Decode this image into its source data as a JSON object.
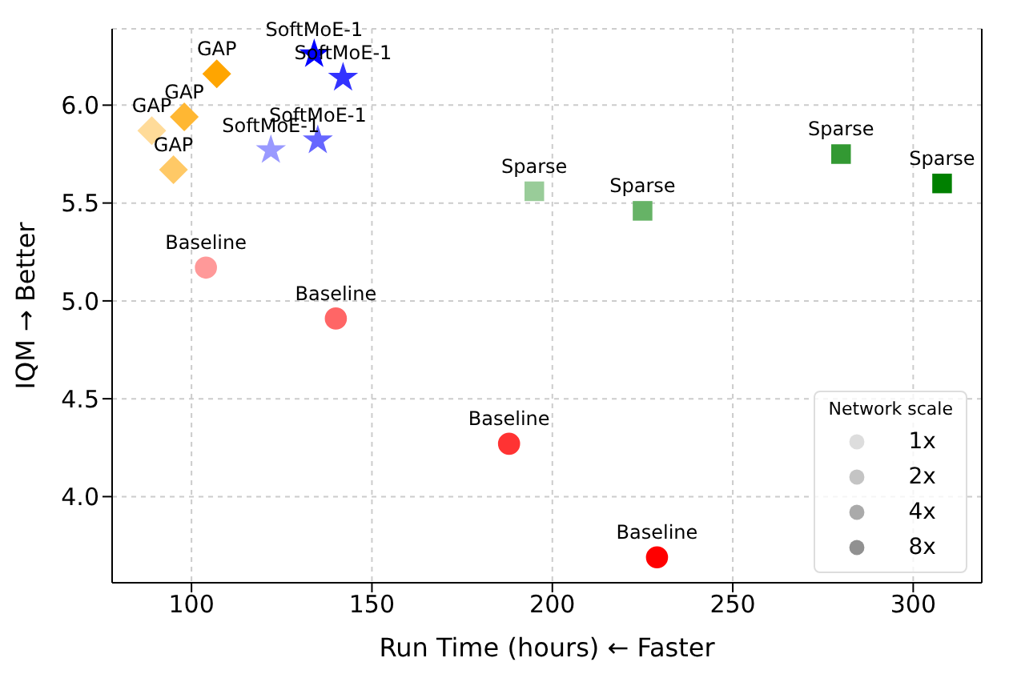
{
  "chart_data": {
    "type": "scatter",
    "xlabel": "Run Time (hours)  ← Faster",
    "ylabel": "IQM → Better",
    "xlim": [
      78,
      319
    ],
    "ylim": [
      3.56,
      6.39
    ],
    "xticks": [
      100,
      150,
      200,
      250,
      300
    ],
    "yticks": [
      {
        "value": 4,
        "label": "4.0"
      },
      4.5,
      {
        "value": 5,
        "label": "5.0"
      },
      5.5,
      {
        "value": 6,
        "label": "6.0"
      }
    ],
    "grid": true,
    "legend": "bottom right",
    "legend_title": "Network scale",
    "series": [
      {
        "name": "Baseline",
        "marker": "circle",
        "x": [
          104,
          140,
          188,
          229
        ],
        "values": [
          5.17,
          4.91,
          4.27,
          3.69
        ],
        "colors": [
          "#ff9999",
          "#ff6666",
          "#ff3333",
          "#ff0000"
        ]
      },
      {
        "name": "GAP",
        "marker": "diamond",
        "x": [
          89,
          95,
          98,
          107
        ],
        "values": [
          5.87,
          5.67,
          5.94,
          6.16
        ],
        "colors": [
          "#ffdb99",
          "#ffc966",
          "#ffb733",
          "#ffa500"
        ]
      },
      {
        "name": "SoftMoE-1",
        "marker": "star",
        "x": [
          122,
          135,
          142,
          134
        ],
        "values": [
          5.77,
          5.82,
          6.14,
          6.26
        ],
        "colors": [
          "#9999ff",
          "#6666ff",
          "#3333ff",
          "#0000ff"
        ]
      },
      {
        "name": "Sparse",
        "marker": "square",
        "x": [
          195,
          225,
          280,
          308
        ],
        "values": [
          5.56,
          5.46,
          5.75,
          5.6
        ],
        "colors": [
          "#99cc99",
          "#66b366",
          "#339933",
          "#008000"
        ]
      },
      {
        "name": "1x",
        "marker": "circle",
        "color": "#dddddd"
      },
      {
        "name": "2x",
        "marker": "circle",
        "color": "#c4c4c4"
      },
      {
        "name": "4x",
        "marker": "circle",
        "color": "#aaaaaa"
      },
      {
        "name": "8x",
        "marker": "circle",
        "color": "#919191"
      }
    ]
  }
}
